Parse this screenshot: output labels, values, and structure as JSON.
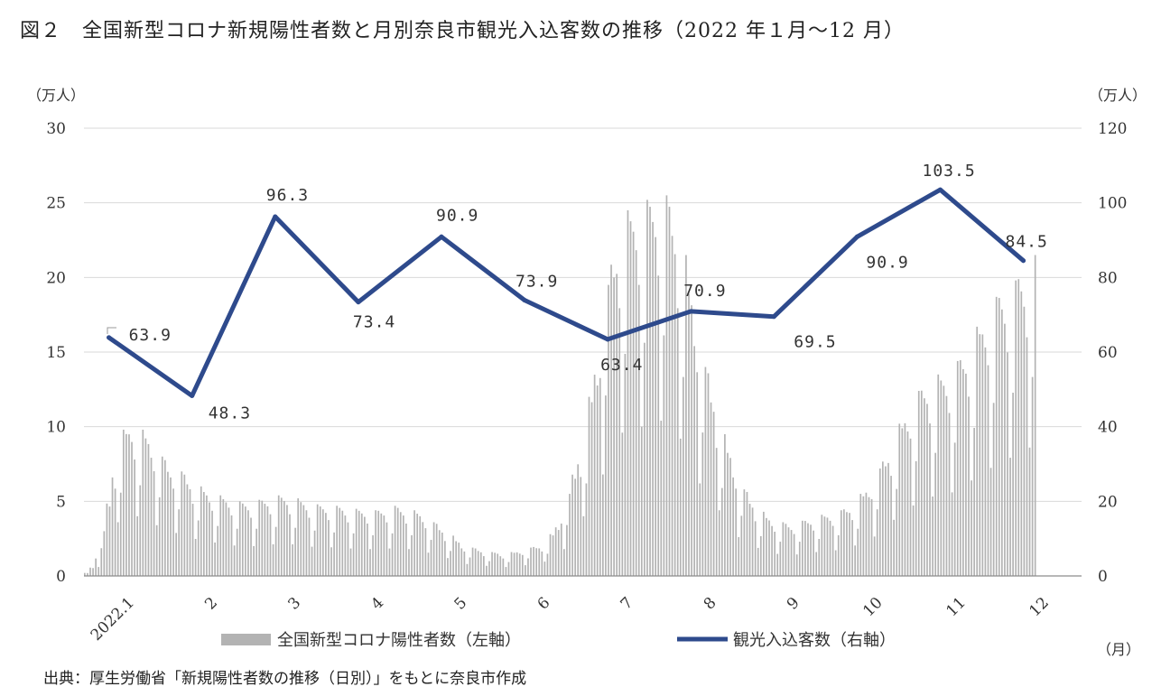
{
  "title": "図２　全国新型コロナ新規陽性者数と月別奈良市観光入込客数の推移（2022 年１月～12 月）",
  "source": "出典：厚生労働省「新規陽性者数の推移（日別）」をもとに奈良市作成",
  "chart_data": {
    "type": "bar+line",
    "y_left": {
      "unit": "（万人）",
      "min": 0,
      "max": 30,
      "ticks": [
        0,
        5,
        10,
        15,
        20,
        25,
        30
      ]
    },
    "y_right": {
      "unit": "（万人）",
      "min": 0,
      "max": 120,
      "ticks": [
        0,
        20,
        40,
        60,
        80,
        100,
        120
      ]
    },
    "x_unit": "（月）",
    "categories": [
      "2022.1",
      "2",
      "3",
      "4",
      "5",
      "6",
      "7",
      "8",
      "9",
      "10",
      "11",
      "12"
    ],
    "grid": "horizontal",
    "legend_position": "bottom",
    "series": [
      {
        "name": "全国新型コロナ陽性者数（左軸）",
        "type": "bar",
        "axis": "left",
        "color": "#b3b3b3",
        "monthly_levels": [
          [
            0.2,
            0.6,
            1.5,
            3.0,
            5.0,
            7.5,
            9.0,
            9.8,
            10.2,
            10.0,
            9.8,
            9.5,
            9.0,
            8.5,
            8.0
          ],
          [
            7.5,
            7.2,
            7.0,
            6.6,
            6.2,
            6.0,
            5.8,
            5.6,
            5.4,
            5.3,
            5.2,
            5.1,
            5.0,
            5.0
          ],
          [
            5.0,
            5.1,
            5.2,
            5.3,
            5.3,
            5.4,
            5.4,
            5.3,
            5.2,
            5.1,
            5.0,
            4.9,
            4.8,
            4.8,
            4.8
          ],
          [
            4.7,
            4.7,
            4.6,
            4.6,
            4.5,
            4.5,
            4.5,
            4.4,
            4.5,
            4.6,
            4.6,
            4.7,
            4.6,
            4.5,
            4.4
          ],
          [
            4.3,
            4.1,
            3.9,
            3.6,
            3.3,
            3.0,
            2.7,
            2.4,
            2.1,
            2.0,
            1.9,
            1.8,
            1.7,
            1.6,
            1.6
          ],
          [
            1.5,
            1.5,
            1.6,
            1.7,
            1.8,
            1.9,
            2.0,
            2.1,
            2.4,
            2.8,
            3.5,
            4.5,
            5.5,
            7.0,
            8.5
          ],
          [
            10.0,
            12.0,
            14.5,
            17.0,
            19.5,
            21.5,
            23.0,
            24.0,
            24.5,
            24.8,
            25.0,
            25.2,
            25.5,
            25.8,
            26.0
          ],
          [
            25.5,
            24.5,
            23.0,
            21.5,
            19.5,
            17.5,
            15.5,
            14.0,
            12.5,
            11.0,
            9.5,
            8.5,
            7.5,
            6.5,
            5.8
          ],
          [
            5.2,
            4.7,
            4.3,
            4.0,
            3.8,
            3.7,
            3.6,
            3.5,
            3.6,
            3.7,
            3.8,
            3.9,
            4.0,
            4.1,
            4.2
          ],
          [
            4.3,
            4.4,
            4.6,
            4.8,
            5.1,
            5.5,
            6.0,
            6.6,
            7.2,
            7.9,
            8.6,
            9.4,
            10.2,
            11.0,
            11.8
          ],
          [
            12.4,
            12.8,
            13.1,
            13.3,
            13.5,
            13.7,
            14.0,
            14.4,
            14.9,
            15.4,
            16.0,
            16.7,
            17.4,
            18.1,
            18.7
          ],
          [
            19.2,
            19.8,
            20.5,
            21.5
          ]
        ]
      },
      {
        "name": "観光入込客数（右軸）",
        "type": "line",
        "axis": "right",
        "color": "#2e4a8c",
        "values": [
          63.9,
          48.3,
          96.3,
          73.4,
          90.9,
          73.9,
          63.4,
          70.9,
          69.5,
          90.9,
          103.5,
          84.5
        ],
        "labels": [
          "63.9",
          "48.3",
          "96.3",
          "73.4",
          "90.9",
          "73.9",
          "63.4",
          "70.9",
          "69.5",
          "90.9",
          "103.5",
          "84.5"
        ]
      }
    ]
  }
}
